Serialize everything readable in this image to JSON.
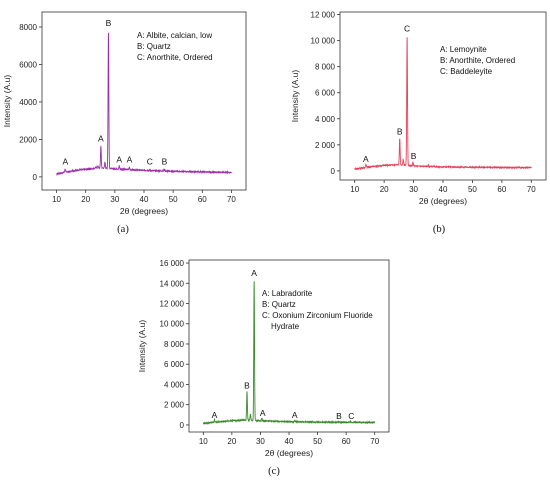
{
  "chart_data": [
    {
      "type": "line",
      "panel_label": "(a)",
      "xlabel": "2θ (degrees)",
      "ylabel": "Intensity (A.u)",
      "xlim": [
        5,
        75
      ],
      "ylim": [
        -700,
        8800
      ],
      "xticks": [
        10,
        20,
        30,
        40,
        50,
        60,
        70
      ],
      "xtick_labels": [
        "10",
        "20",
        "30",
        "40",
        "50",
        "60",
        "70"
      ],
      "yticks": [
        0,
        2000,
        4000,
        6000,
        8000
      ],
      "ytick_labels": [
        "0",
        "2000",
        "4000",
        "6000",
        "8000"
      ],
      "grid": false,
      "line_color": "#9a2fa8",
      "baseline": [
        [
          10,
          150
        ],
        [
          13,
          250
        ],
        [
          18,
          380
        ],
        [
          22,
          430
        ],
        [
          25,
          480
        ],
        [
          35,
          380
        ],
        [
          45,
          320
        ],
        [
          55,
          280
        ],
        [
          65,
          250
        ],
        [
          70,
          240
        ]
      ],
      "peaks": [
        {
          "x": 12.9,
          "y": 420
        },
        {
          "x": 23.5,
          "y": 560
        },
        {
          "x": 24.2,
          "y": 600
        },
        {
          "x": 25.2,
          "y": 1650
        },
        {
          "x": 26.6,
          "y": 800
        },
        {
          "x": 27.8,
          "y": 7800
        },
        {
          "x": 31.5,
          "y": 580
        },
        {
          "x": 35.0,
          "y": 520
        },
        {
          "x": 42.0,
          "y": 380
        },
        {
          "x": 47.0,
          "y": 420
        }
      ],
      "peak_labels": [
        {
          "text": "A",
          "x": 13.0,
          "y": 650
        },
        {
          "text": "A",
          "x": 25.2,
          "y": 1900
        },
        {
          "text": "B",
          "x": 27.8,
          "y": 8050
        },
        {
          "text": "A",
          "x": 31.5,
          "y": 760
        },
        {
          "text": "A",
          "x": 35.0,
          "y": 760
        },
        {
          "text": "C",
          "x": 42.0,
          "y": 660
        },
        {
          "text": "B",
          "x": 47.0,
          "y": 660
        }
      ],
      "legend": [
        "A: Albite, calcian, low",
        "B: Quartz",
        "C: Anorthite, Ordered"
      ],
      "legend_position": "top-right"
    },
    {
      "type": "line",
      "panel_label": "(b)",
      "xlabel": "2θ (degrees)",
      "ylabel": "Intensity (A.u)",
      "xlim": [
        5,
        75
      ],
      "ylim": [
        -700,
        12200
      ],
      "xticks": [
        10,
        20,
        30,
        40,
        50,
        60,
        70
      ],
      "xtick_labels": [
        "10",
        "20",
        "30",
        "40",
        "50",
        "60",
        "70"
      ],
      "yticks": [
        0,
        2000,
        4000,
        6000,
        8000,
        10000,
        12000
      ],
      "ytick_labels": [
        "0",
        "2 000",
        "4 000",
        "6 000",
        "8 000",
        "10 000",
        "12 000"
      ],
      "grid": false,
      "line_color": "#e3445a",
      "baseline": [
        [
          10,
          150
        ],
        [
          15,
          300
        ],
        [
          20,
          420
        ],
        [
          25,
          480
        ],
        [
          30,
          380
        ],
        [
          40,
          300
        ],
        [
          50,
          280
        ],
        [
          60,
          260
        ],
        [
          70,
          250
        ]
      ],
      "peaks": [
        {
          "x": 13.8,
          "y": 480
        },
        {
          "x": 25.3,
          "y": 2500
        },
        {
          "x": 26.5,
          "y": 900
        },
        {
          "x": 27.8,
          "y": 10400
        },
        {
          "x": 29.8,
          "y": 650
        },
        {
          "x": 35.0,
          "y": 420
        },
        {
          "x": 42.0,
          "y": 360
        }
      ],
      "peak_labels": [
        {
          "text": "A",
          "x": 13.8,
          "y": 700
        },
        {
          "text": "B",
          "x": 25.3,
          "y": 2800
        },
        {
          "text": "C",
          "x": 27.8,
          "y": 10700
        },
        {
          "text": "B",
          "x": 30.0,
          "y": 900
        }
      ],
      "legend": [
        "A: Lemoynite",
        "B: Anorthite, Ordered",
        "C: Baddeleyite"
      ],
      "legend_position": "top-right"
    },
    {
      "type": "line",
      "panel_label": "(c)",
      "xlabel": "2θ (degrees)",
      "ylabel": "Intensity (A.u)",
      "xlim": [
        5,
        75
      ],
      "ylim": [
        -700,
        16300
      ],
      "xticks": [
        10,
        20,
        30,
        40,
        50,
        60,
        70
      ],
      "xtick_labels": [
        "10",
        "20",
        "30",
        "40",
        "50",
        "60",
        "70"
      ],
      "yticks": [
        0,
        2000,
        4000,
        6000,
        8000,
        10000,
        12000,
        14000,
        16000
      ],
      "ytick_labels": [
        "0",
        "2 000",
        "4 000",
        "6 000",
        "8 000",
        "10 000",
        "12 000",
        "14 000",
        "16 000"
      ],
      "grid": false,
      "line_color": "#3c8a2e",
      "baseline": [
        [
          10,
          150
        ],
        [
          15,
          300
        ],
        [
          20,
          420
        ],
        [
          25,
          480
        ],
        [
          30,
          400
        ],
        [
          40,
          320
        ],
        [
          50,
          280
        ],
        [
          60,
          250
        ],
        [
          70,
          240
        ]
      ],
      "peaks": [
        {
          "x": 13.9,
          "y": 500
        },
        {
          "x": 25.3,
          "y": 3300
        },
        {
          "x": 26.5,
          "y": 1100
        },
        {
          "x": 27.8,
          "y": 14400
        },
        {
          "x": 30.5,
          "y": 650
        },
        {
          "x": 42.0,
          "y": 420
        },
        {
          "x": 57.5,
          "y": 330
        },
        {
          "x": 61.5,
          "y": 360
        }
      ],
      "peak_labels": [
        {
          "text": "A",
          "x": 13.9,
          "y": 700
        },
        {
          "text": "B",
          "x": 25.3,
          "y": 3600
        },
        {
          "text": "A",
          "x": 27.8,
          "y": 14700
        },
        {
          "text": "A",
          "x": 30.8,
          "y": 900
        },
        {
          "text": "A",
          "x": 42.0,
          "y": 700
        },
        {
          "text": "B",
          "x": 57.5,
          "y": 600
        },
        {
          "text": "C",
          "x": 61.8,
          "y": 600
        }
      ],
      "legend": [
        "A: Labradorite",
        "B: Quartz",
        "C: Oxonium Zirconium Fluoride",
        "Hydrate"
      ],
      "legend_position": "top-right"
    }
  ]
}
